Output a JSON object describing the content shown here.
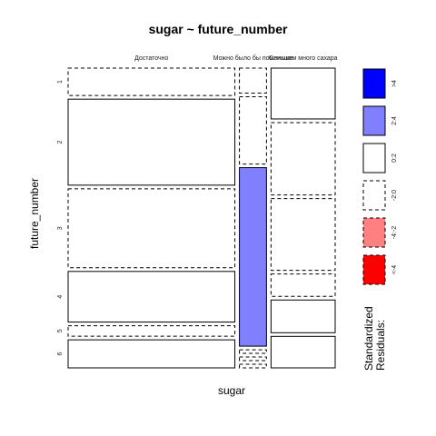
{
  "chart_data": {
    "type": "mosaic",
    "title": "sugar ~ future_number",
    "xlabel": "sugar",
    "ylabel": "future_number",
    "columns": [
      "Достаточно",
      "Можно было бы поменьше",
      "Слишком много сахара"
    ],
    "rows": [
      "1",
      "2",
      "3",
      "4",
      "5",
      "6"
    ],
    "column_shares": [
      0.616,
      0.1,
      0.237
    ],
    "cells": [
      {
        "col": 0,
        "heights": [
          0.086,
          0.27,
          0.248,
          0.159,
          0.033,
          0.088
        ],
        "residual_class": [
          "-2:0",
          "0:2",
          "-2:0",
          "0:2",
          "-2:0",
          "0:2"
        ]
      },
      {
        "col": 1,
        "heights": [
          0.083,
          0.224,
          0.594,
          0.012,
          0.012,
          0.012
        ],
        "residual_class": [
          "-2:0",
          "-2:0",
          "2:4",
          "-2:0",
          "-2:0",
          "-2:0"
        ]
      },
      {
        "col": 2,
        "heights": [
          0.163,
          0.232,
          0.23,
          0.072,
          0.105,
          0.101
        ],
        "residual_class": [
          "0:2",
          "-2:0",
          "-2:0",
          "-2:0",
          "0:2",
          "0:2"
        ]
      }
    ],
    "legend": {
      "title": "Standardized Residuals:",
      "entries": [
        {
          "label": ">4",
          "color": "#0000ff",
          "dashed": false
        },
        {
          "label": "2:4",
          "color": "#8080ff",
          "dashed": false
        },
        {
          "label": "0:2",
          "color": "#ffffff",
          "dashed": false
        },
        {
          "label": "-2:0",
          "color": "#ffffff",
          "dashed": true
        },
        {
          "label": "-4:-2",
          "color": "#ff8080",
          "dashed": true
        },
        {
          "label": "<-4",
          "color": "#ff0000",
          "dashed": true
        }
      ]
    }
  }
}
